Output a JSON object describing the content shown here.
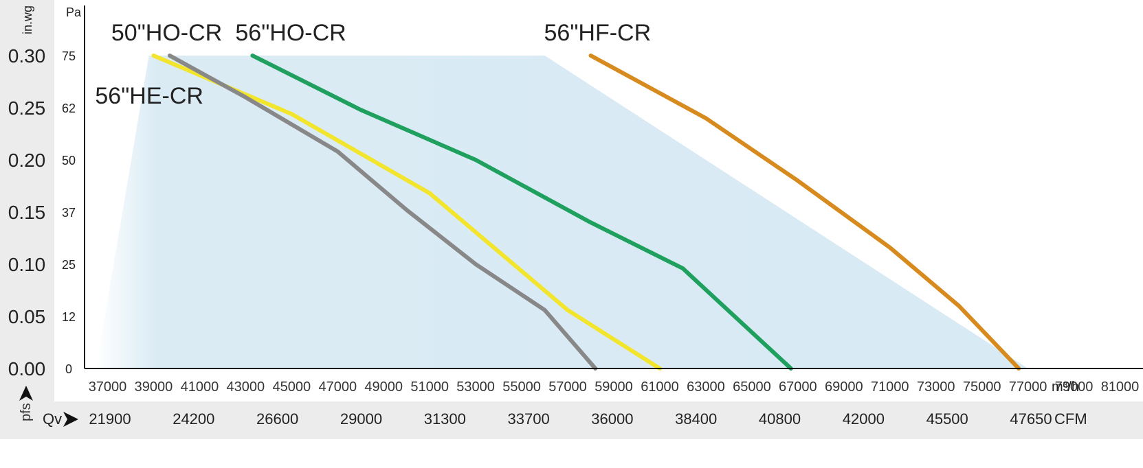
{
  "chart_data": {
    "type": "line",
    "title": "",
    "y_axes": {
      "in_wg": {
        "label": "in.wg",
        "ticks": [
          "0.30",
          "0.25",
          "0.20",
          "0.15",
          "0.10",
          "0.05",
          "0.00"
        ]
      },
      "pa": {
        "label": "Pa",
        "ticks": [
          "75",
          "62",
          "50",
          "37",
          "25",
          "12",
          "0"
        ]
      }
    },
    "x_axis": {
      "unit": "m³/h",
      "ticks": [
        "37000",
        "39000",
        "41000",
        "43000",
        "45000",
        "47000",
        "49000",
        "51000",
        "53000",
        "55000",
        "57000",
        "59000",
        "61000",
        "63000",
        "65000",
        "67000",
        "69000",
        "71000",
        "73000",
        "75000",
        "77000",
        "79000",
        "81000"
      ],
      "xlim": [
        36000,
        82000
      ]
    },
    "ylim": [
      0,
      75
    ],
    "cfm_row": {
      "left_label": "pfs",
      "row_label": "Qv",
      "unit": "CFM",
      "values": [
        "21900",
        "24200",
        "26600",
        "29000",
        "31300",
        "33700",
        "36000",
        "38400",
        "40800",
        "42000",
        "45500",
        "47650"
      ]
    },
    "envelope": {
      "color": "#d8eaf4",
      "points": [
        [
          36500,
          0
        ],
        [
          38800,
          75
        ],
        [
          56000,
          75
        ],
        [
          77000,
          0
        ]
      ]
    },
    "series": [
      {
        "name": "56\"HE-CR",
        "color": "#f2e52c",
        "points": [
          [
            39000,
            75
          ],
          [
            45000,
            61
          ],
          [
            51000,
            42
          ],
          [
            57000,
            14
          ],
          [
            61000,
            0
          ]
        ]
      },
      {
        "name": "50\"HO-CR",
        "color": "#888888",
        "points": [
          [
            39700,
            75
          ],
          [
            43000,
            65
          ],
          [
            47000,
            52
          ],
          [
            50000,
            38
          ],
          [
            53000,
            25
          ],
          [
            56000,
            14
          ],
          [
            58200,
            0
          ]
        ]
      },
      {
        "name": "56\"HO-CR",
        "color": "#1fa05e",
        "points": [
          [
            43300,
            75
          ],
          [
            48000,
            62
          ],
          [
            53000,
            50
          ],
          [
            58000,
            35
          ],
          [
            62000,
            24
          ],
          [
            66700,
            0
          ]
        ]
      },
      {
        "name": "56\"HF-CR",
        "color": "#d78a1e",
        "points": [
          [
            58000,
            75
          ],
          [
            63000,
            60
          ],
          [
            67000,
            45
          ],
          [
            71000,
            29
          ],
          [
            74000,
            15
          ],
          [
            76600,
            0
          ]
        ]
      }
    ]
  }
}
